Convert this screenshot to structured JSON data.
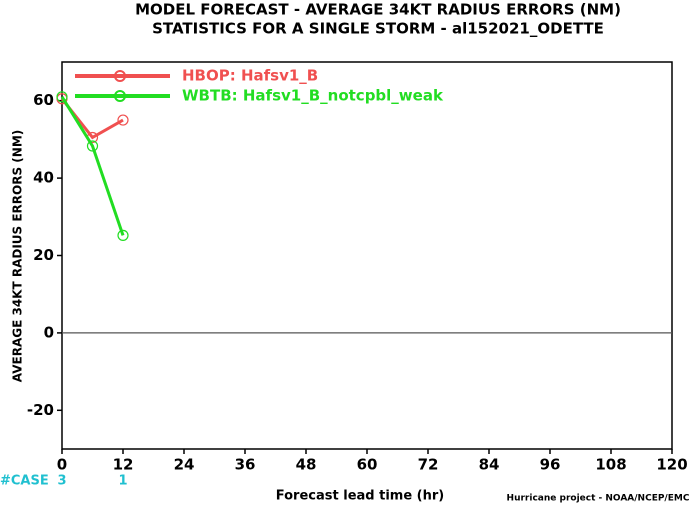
{
  "chart_data": {
    "type": "line",
    "title": "MODEL FORECAST - AVERAGE 34KT RADIUS ERRORS (NM)",
    "subtitle": "STATISTICS FOR A SINGLE STORM - al152021_ODETTE",
    "x_label": "Forecast lead time (hr)",
    "y_label": "AVERAGE 34KT RADIUS ERRORS (NM)",
    "credit": "Hurricane project - NOAA/NCEP/EMC",
    "x": [
      0,
      6,
      12
    ],
    "series": [
      {
        "name": "HBOP: Hafsv1_B",
        "color": "#f05050",
        "values": [
          60.5,
          50.5,
          55
        ]
      },
      {
        "name": "WBTB: Hafsv1_B_notcpbl_weak",
        "color": "#22dd22",
        "values": [
          61,
          48.3,
          25.2
        ]
      }
    ],
    "cases": {
      "label": "#CASE",
      "color": "#20c0d0",
      "x": [
        0,
        12
      ],
      "values": [
        3,
        1
      ]
    },
    "xlim": [
      0,
      120
    ],
    "xticks": [
      0,
      12,
      24,
      36,
      48,
      60,
      72,
      84,
      96,
      108,
      120
    ],
    "ylim": [
      -30,
      70
    ],
    "yticks": [
      -20,
      0,
      20,
      40,
      60
    ],
    "zero_line": true,
    "legend": "top-left"
  }
}
